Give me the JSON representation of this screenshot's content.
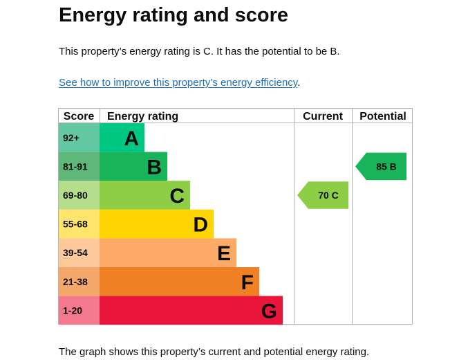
{
  "page": {
    "title": "Energy rating and score",
    "summary": "This property’s energy rating is C. It has the potential to be B.",
    "improve_link": "See how to improve this property’s energy efficiency",
    "improve_link_suffix": ".",
    "footer": "The graph shows this property’s current and potential energy rating."
  },
  "chart_data": {
    "type": "bar",
    "headers": {
      "score": "Score",
      "rating": "Energy rating",
      "current": "Current",
      "potential": "Potential"
    },
    "bands": [
      {
        "letter": "A",
        "range": "92+",
        "color": "#008054",
        "score_color": "#63c8a2",
        "bar_color": "#00c781"
      },
      {
        "letter": "B",
        "range": "81-91",
        "color": "#19b459",
        "score_color": "#5fb77a",
        "bar_color": "#19b459"
      },
      {
        "letter": "C",
        "range": "69-80",
        "color": "#8dce46",
        "score_color": "#b5de8c",
        "bar_color": "#8dce46"
      },
      {
        "letter": "D",
        "range": "55-68",
        "color": "#ffd500",
        "score_color": "#ffe46c",
        "bar_color": "#ffd500"
      },
      {
        "letter": "E",
        "range": "39-54",
        "color": "#fcaa65",
        "score_color": "#fdc99a",
        "bar_color": "#fcaa65"
      },
      {
        "letter": "F",
        "range": "21-38",
        "color": "#ef8023",
        "score_color": "#f5a86a",
        "bar_color": "#ef8023"
      },
      {
        "letter": "G",
        "range": "1-20",
        "color": "#e9153b",
        "score_color": "#f37a8e",
        "bar_color": "#e9153b"
      }
    ],
    "current": {
      "value": 70,
      "letter": "C",
      "label": "70 C",
      "color": "#8dce46"
    },
    "potential": {
      "value": 85,
      "letter": "B",
      "label": "85 B",
      "color": "#19b459"
    }
  }
}
